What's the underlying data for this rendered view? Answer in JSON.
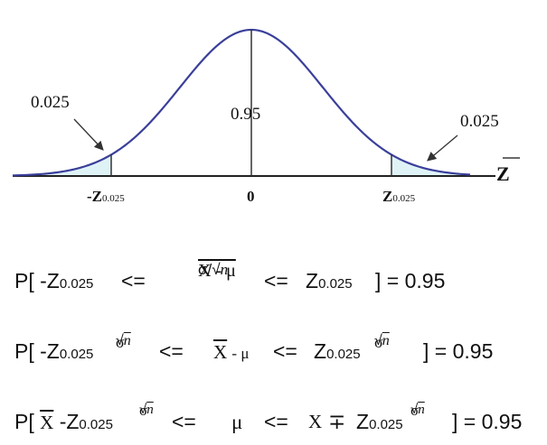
{
  "figure": {
    "left_tail_prob": "0.025",
    "right_tail_prob": "0.025",
    "center_prob": "0.95",
    "left_critical": "-Z",
    "left_critical_sub": "0.025",
    "center_tick": "0",
    "right_critical": "Z",
    "right_critical_sub": "0.025",
    "axis_variable": "Z",
    "colors": {
      "curve": "#3a3f9a",
      "shade": "#dff3f7",
      "axis": "#222222"
    }
  },
  "equations": [
    {
      "lhs": "P[ -Z",
      "lhs_sub": "0.025",
      "op1": "<=",
      "frac_num": "X - μ",
      "frac_den_sigma": "σ/",
      "frac_den_n": "n",
      "op2": "<=",
      "mid": "Z",
      "mid_sub": "0.025",
      "rhs": "] = 0.95"
    },
    {
      "lhs": "P[ -Z",
      "lhs_sub": "0.025",
      "frac_num": "σ",
      "frac_den_n": "n",
      "op1": "<=",
      "center_x": "X",
      "center_rest": "- μ",
      "op2": "<=",
      "mid": "Z",
      "mid_sub": "0.025",
      "frac2_num": "σ",
      "frac2_den_n": "n",
      "rhs": "] = 0.95"
    },
    {
      "lhs_p": "P[",
      "lhs_x": "X",
      "lhs_z": "-Z",
      "lhs_sub": "0.025",
      "frac_num": "σ",
      "frac_den_n": "n",
      "op1": "<=",
      "mu": "μ",
      "op2": "<=",
      "x": "X",
      "pm": "∓",
      "mid": "Z",
      "mid_sub": "0.025",
      "frac2_num": "σ",
      "frac2_den_n": "n",
      "rhs": "] = 0.95"
    }
  ]
}
